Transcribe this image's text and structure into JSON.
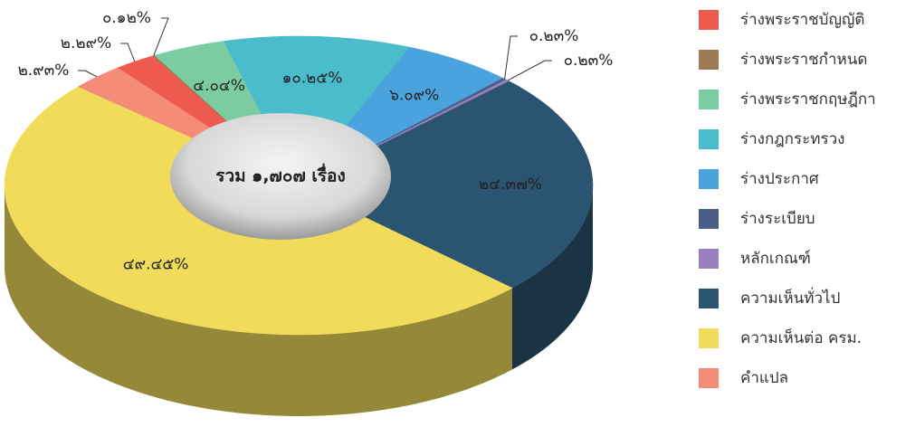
{
  "chart_data": {
    "type": "donut3d",
    "center_label": "รวม ๑,๗๐๗ เรื่อง",
    "categories": [
      "ร่างพระราชบัญญัติ",
      "ร่างพระราชกำหนด",
      "ร่างพระราชกฤษฎีกา",
      "ร่างกฎกระทรวง",
      "ร่างประกาศ",
      "ร่างระเบียบ",
      "หลักเกณฑ์",
      "ความเห็นทั่วไป",
      "ความเห็นต่อ ครม.",
      "คำแปล"
    ],
    "values": [
      2.29,
      0.12,
      4.04,
      10.25,
      6.09,
      0.23,
      0.23,
      24.37,
      49.45,
      2.93
    ],
    "value_labels": [
      "๒.๒๙%",
      "๐.๑๒%",
      "๔.๐๔%",
      "๑๐.๒๕%",
      "๖.๐๙%",
      "๐.๒๓%",
      "๐.๒๓%",
      "๒๔.๓๗%",
      "๔๙.๔๕%",
      "๒.๙๓%"
    ],
    "colors": [
      "#ef5a4f",
      "#9c7b55",
      "#7ccca2",
      "#4bbccc",
      "#4aa3dc",
      "#4a5f86",
      "#9a80c0",
      "#2b5470",
      "#f0dc5a",
      "#f48c78"
    ],
    "legend": "right"
  }
}
